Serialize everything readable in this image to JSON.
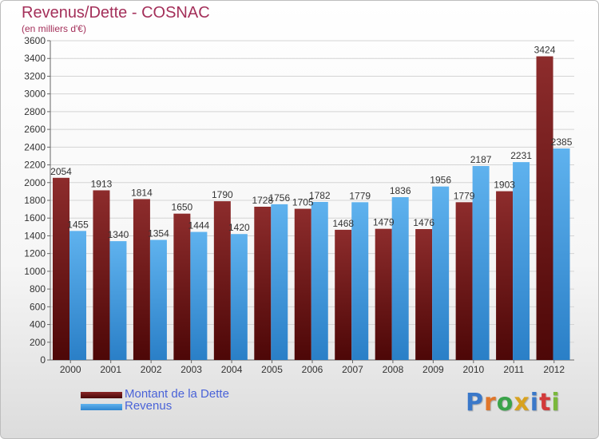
{
  "chart_data": {
    "type": "bar",
    "title": "Revenus/Dette - COSNAC",
    "subtitle": "(en milliers d'€)",
    "categories": [
      "2000",
      "2001",
      "2002",
      "2003",
      "2004",
      "2005",
      "2006",
      "2007",
      "2008",
      "2009",
      "2010",
      "2011",
      "2012"
    ],
    "series": [
      {
        "name": "Montant de la Dette",
        "color": "#7a1e1e",
        "values": [
          2054,
          1913,
          1814,
          1650,
          1790,
          1728,
          1705,
          1468,
          1479,
          1476,
          1779,
          1903,
          3424
        ],
        "labels": [
          "2054",
          "1913",
          "1814",
          "1650",
          "1790",
          "1728",
          "1705",
          "1468",
          "1479",
          "1476",
          "1779",
          "1903",
          "3424"
        ]
      },
      {
        "name": "Revenus",
        "color": "#3f9be2",
        "values": [
          1455,
          1340,
          1354,
          1444,
          1420,
          1756,
          1782,
          1779,
          1836,
          1956,
          2187,
          2231,
          2385
        ],
        "labels": [
          "1455",
          "1340",
          "1354",
          "1444",
          "1420",
          "1756",
          "1782",
          "1779",
          "1836",
          "1956",
          "2187",
          "2231",
          "2385"
        ]
      }
    ],
    "ylim": [
      0,
      3600
    ],
    "yticks": [
      0,
      200,
      400,
      600,
      800,
      1000,
      1200,
      1400,
      1600,
      1800,
      2000,
      2200,
      2400,
      2600,
      2800,
      3000,
      3200,
      3400,
      3600
    ],
    "grid": true,
    "legend_position": "bottom-left"
  },
  "logo": {
    "text": "Proxiti"
  }
}
